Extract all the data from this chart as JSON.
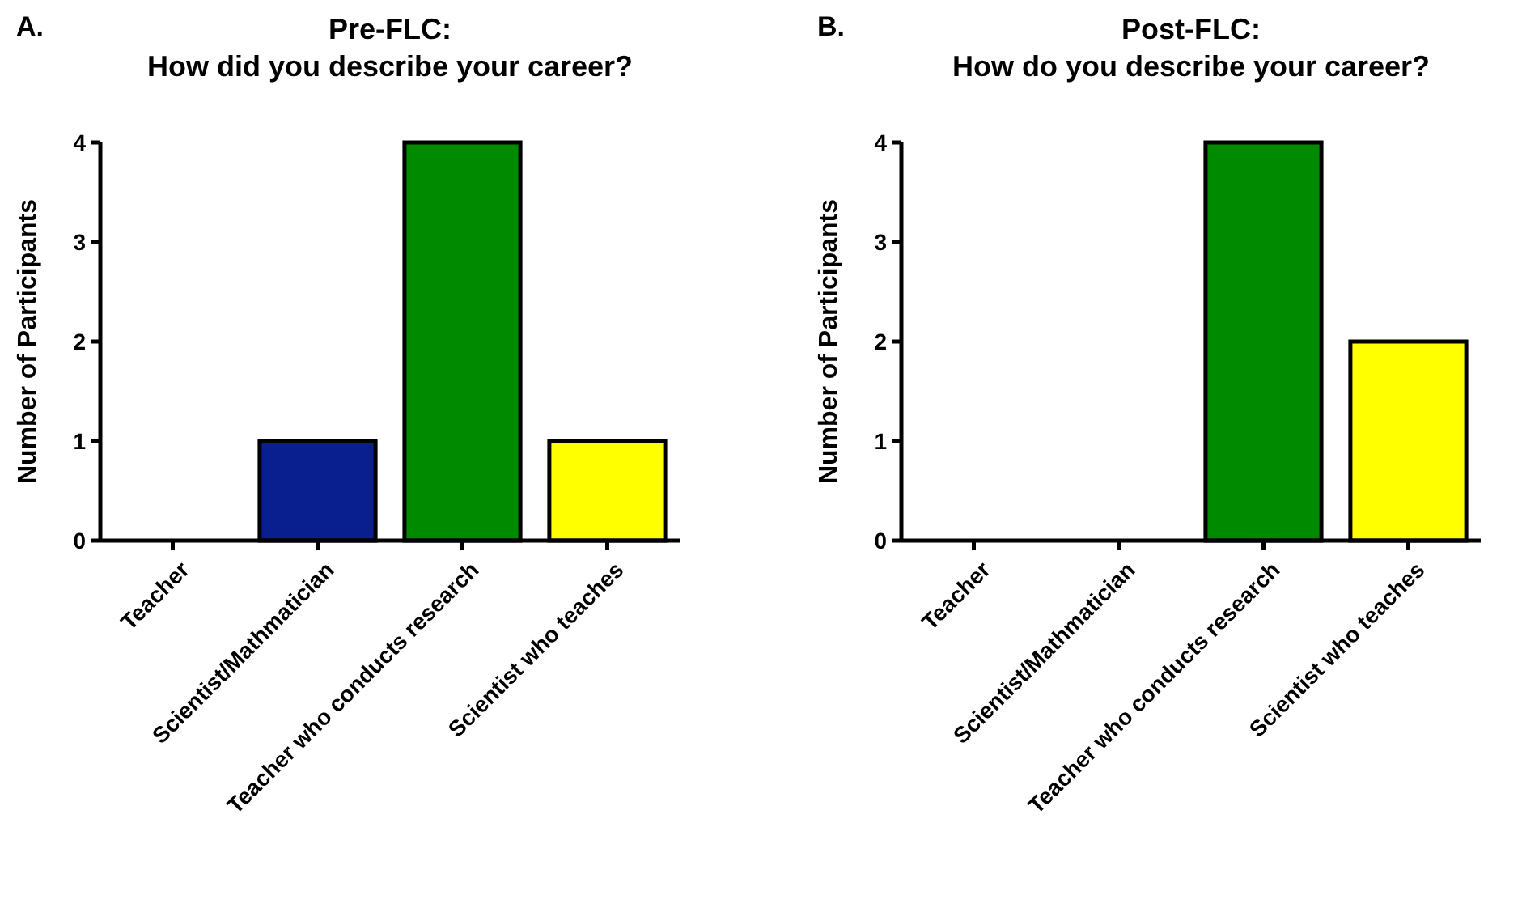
{
  "chart_data": [
    {
      "type": "bar",
      "title": "Pre-FLC:\nHow did you describe your career?",
      "ylabel": "Number of Participants",
      "annotations": [
        "A."
      ],
      "categories": [
        "Teacher",
        "Scientist/Mathmatician",
        "Teacher who conducts research",
        "Scientist who teaches"
      ],
      "values": [
        0,
        1,
        4,
        1
      ],
      "colors": [
        "#0a1f8f",
        "#0a1f8f",
        "#008a00",
        "#ffff00"
      ],
      "ylim": [
        0,
        4
      ],
      "yticks": [
        0,
        1,
        2,
        3,
        4
      ],
      "grid": false
    },
    {
      "type": "bar",
      "title": "Post-FLC:\nHow do you describe your career?",
      "ylabel": "Number of Participants",
      "annotations": [
        "B."
      ],
      "categories": [
        "Teacher",
        "Scientist/Mathmatician",
        "Teacher who conducts research",
        "Scientist who teaches"
      ],
      "values": [
        0,
        0,
        4,
        2
      ],
      "colors": [
        "#0a1f8f",
        "#0a1f8f",
        "#008a00",
        "#ffff00"
      ],
      "ylim": [
        0,
        4
      ],
      "yticks": [
        0,
        1,
        2,
        3,
        4
      ],
      "grid": false
    }
  ]
}
